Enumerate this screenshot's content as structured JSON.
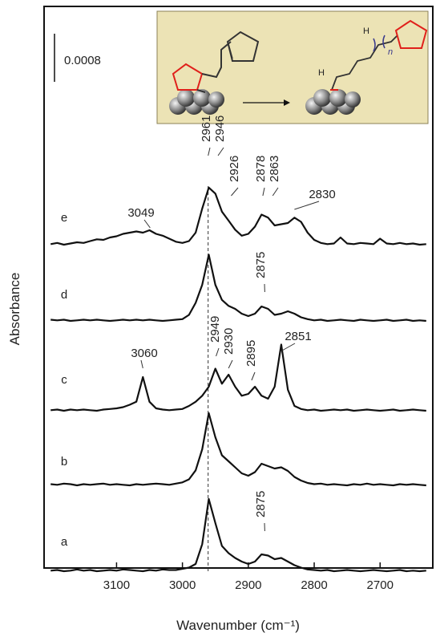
{
  "chart_data": {
    "type": "line",
    "y_label": "Absorbance",
    "x_label": "Wavenumber (cm⁻¹)",
    "xlim": [
      3210,
      2620
    ],
    "xticks": [
      3100,
      3000,
      2900,
      2800,
      2700
    ],
    "scale_bar": 0.0008,
    "reference_line": 2961,
    "color": "#111111",
    "inset": {
      "labels": [
        "H",
        "H",
        "n"
      ]
    },
    "x": [
      3200,
      3190,
      3180,
      3170,
      3160,
      3150,
      3140,
      3130,
      3120,
      3110,
      3100,
      3090,
      3080,
      3070,
      3060,
      3050,
      3040,
      3030,
      3020,
      3010,
      3000,
      2990,
      2980,
      2970,
      2960,
      2950,
      2940,
      2930,
      2920,
      2910,
      2900,
      2890,
      2880,
      2870,
      2860,
      2850,
      2840,
      2830,
      2820,
      2810,
      2800,
      2790,
      2780,
      2770,
      2760,
      2750,
      2740,
      2730,
      2720,
      2710,
      2700,
      2690,
      2680,
      2670,
      2660,
      2650,
      2640,
      2630
    ],
    "series": [
      {
        "name": "a",
        "peaks": [
          2875
        ],
        "values": [
          1e-05,
          2e-05,
          0,
          1e-05,
          3e-05,
          1e-05,
          2e-05,
          0,
          1e-05,
          2e-05,
          1e-05,
          3e-05,
          2e-05,
          1e-05,
          0,
          2e-05,
          1e-05,
          3e-05,
          2e-05,
          2e-05,
          4e-05,
          6e-05,
          0.00012,
          0.00045,
          0.0012,
          0.0008,
          0.00042,
          0.0003,
          0.00022,
          0.00016,
          0.00012,
          0.00016,
          0.00028,
          0.00026,
          0.0002,
          0.00022,
          0.00016,
          0.0001,
          6e-05,
          3e-05,
          2e-05,
          1e-05,
          2e-05,
          0,
          1e-05,
          2e-05,
          1e-05,
          0,
          1e-05,
          2e-05,
          1e-05,
          0,
          1e-05,
          2e-05,
          0,
          1e-05,
          0,
          1e-05
        ]
      },
      {
        "name": "b",
        "values": [
          2e-05,
          1e-05,
          3e-05,
          2e-05,
          0,
          2e-05,
          1e-05,
          2e-05,
          3e-05,
          1e-05,
          2e-05,
          1e-05,
          0,
          2e-05,
          1e-05,
          2e-05,
          3e-05,
          2e-05,
          1e-05,
          3e-05,
          5e-05,
          0.0001,
          0.00025,
          0.0006,
          0.0012,
          0.0008,
          0.0005,
          0.0004,
          0.0003,
          0.0002,
          0.00016,
          0.00022,
          0.00036,
          0.00032,
          0.00028,
          0.0003,
          0.00024,
          0.00014,
          8e-05,
          4e-05,
          2e-05,
          3e-05,
          1e-05,
          2e-05,
          1e-05,
          0,
          2e-05,
          1e-05,
          3e-05,
          1e-05,
          2e-05,
          1e-05,
          0,
          2e-05,
          1e-05,
          2e-05,
          1e-05,
          0
        ]
      },
      {
        "name": "c",
        "peaks": [
          3060,
          2949,
          2930,
          2895,
          2851
        ],
        "values": [
          1e-05,
          2e-05,
          0,
          2e-05,
          1e-05,
          2e-05,
          1e-05,
          0,
          2e-05,
          3e-05,
          4e-05,
          6e-05,
          0.0001,
          0.00015,
          0.00056,
          0.00015,
          4e-05,
          2e-05,
          1e-05,
          2e-05,
          3e-05,
          8e-05,
          0.00015,
          0.00025,
          0.0004,
          0.0007,
          0.00045,
          0.0006,
          0.0004,
          0.00025,
          0.00028,
          0.0004,
          0.00025,
          0.0002,
          0.0004,
          0.0011,
          0.00035,
          8e-05,
          3e-05,
          1e-05,
          2e-05,
          0,
          1e-05,
          2e-05,
          1e-05,
          2e-05,
          0,
          1e-05,
          2e-05,
          1e-05,
          0,
          1e-05,
          2e-05,
          0,
          1e-05,
          2e-05,
          1e-05,
          0
        ]
      },
      {
        "name": "d",
        "peaks": [
          2875
        ],
        "values": [
          2e-05,
          1e-05,
          2e-05,
          0,
          1e-05,
          2e-05,
          1e-05,
          2e-05,
          1e-05,
          0,
          1e-05,
          2e-05,
          1e-05,
          2e-05,
          1e-05,
          2e-05,
          1e-05,
          0,
          1e-05,
          2e-05,
          3e-05,
          0.0001,
          0.0003,
          0.0006,
          0.0011,
          0.0006,
          0.00035,
          0.00025,
          0.0002,
          0.00012,
          8e-05,
          0.00012,
          0.00024,
          0.0002,
          0.0001,
          0.00012,
          0.00016,
          0.00012,
          6e-05,
          3e-05,
          1e-05,
          2e-05,
          0,
          1e-05,
          2e-05,
          1e-05,
          0,
          2e-05,
          1e-05,
          0,
          1e-05,
          2e-05,
          0,
          1e-05,
          2e-05,
          0,
          1e-05,
          0
        ]
      },
      {
        "name": "e",
        "peaks": [
          3049,
          2961,
          2946,
          2926,
          2878,
          2863,
          2830
        ],
        "values": [
          1e-05,
          3e-05,
          0,
          2e-05,
          4e-05,
          3e-05,
          6e-05,
          9e-05,
          8e-05,
          0.00012,
          0.00014,
          0.00018,
          0.0002,
          0.00022,
          0.0002,
          0.00024,
          0.00018,
          0.00015,
          0.0001,
          5e-05,
          3e-05,
          6e-05,
          0.0002,
          0.0006,
          0.00095,
          0.00085,
          0.00055,
          0.0004,
          0.00025,
          0.00015,
          0.00018,
          0.0003,
          0.0005,
          0.00045,
          0.00032,
          0.00034,
          0.00036,
          0.00045,
          0.00038,
          0.0002,
          8e-05,
          3e-05,
          1e-05,
          2e-05,
          0.00012,
          2e-05,
          1e-05,
          3e-05,
          2e-05,
          1e-05,
          0.0001,
          2e-05,
          1e-05,
          3e-05,
          1e-05,
          2e-05,
          0,
          1e-05
        ]
      }
    ]
  }
}
